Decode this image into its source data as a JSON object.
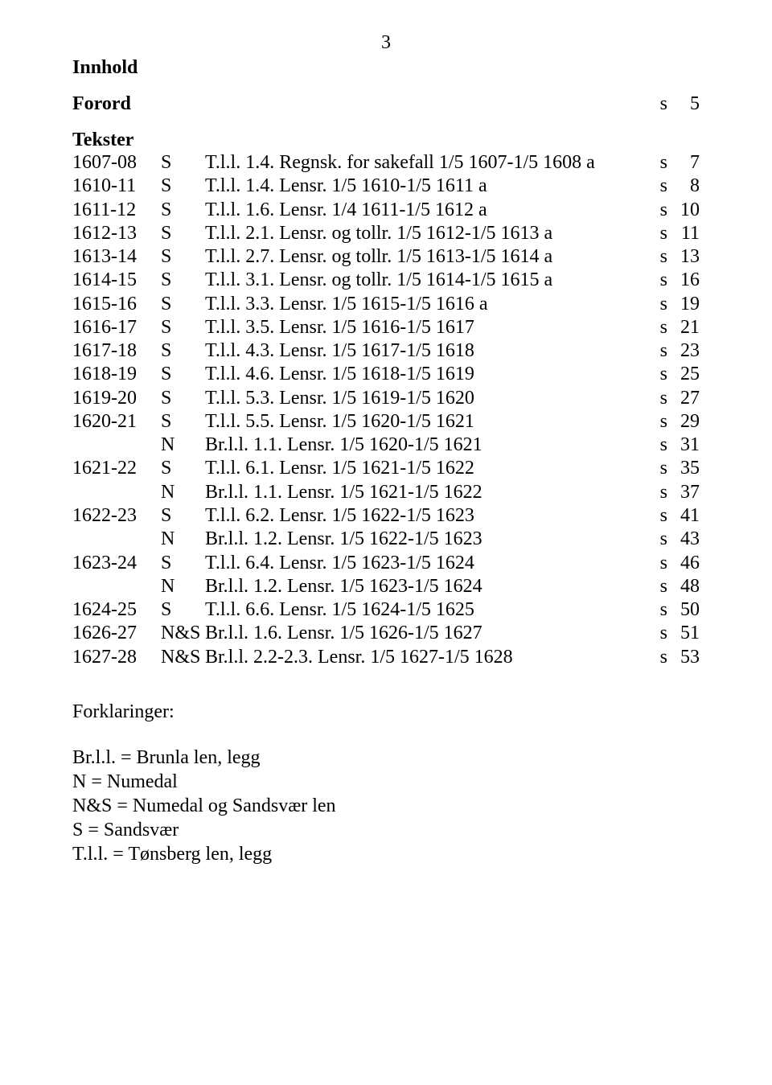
{
  "page_number": "3",
  "heading_innhold": "Innhold",
  "forord": {
    "label": "Forord",
    "s": "s",
    "page": "5"
  },
  "heading_tekster": "Tekster",
  "rows": [
    {
      "year": "1607-08",
      "code": "S",
      "desc": "T.l.l. 1.4. Regnsk. for sakefall 1/5 1607-1/5 1608 a",
      "s": "s",
      "page": "7"
    },
    {
      "year": "1610-11",
      "code": "S",
      "desc": "T.l.l. 1.4. Lensr. 1/5 1610-1/5 1611 a",
      "s": "s",
      "page": "8"
    },
    {
      "year": "1611-12",
      "code": "S",
      "desc": "T.l.l. 1.6. Lensr. 1/4 1611-1/5 1612 a",
      "s": "s",
      "page": "10"
    },
    {
      "year": "1612-13",
      "code": "S",
      "desc": "T.l.l. 2.1. Lensr. og tollr. 1/5 1612-1/5 1613 a",
      "s": "s",
      "page": "11"
    },
    {
      "year": "1613-14",
      "code": "S",
      "desc": "T.l.l. 2.7. Lensr. og tollr. 1/5 1613-1/5 1614 a",
      "s": "s",
      "page": "13"
    },
    {
      "year": "1614-15",
      "code": "S",
      "desc": "T.l.l. 3.1. Lensr. og tollr. 1/5 1614-1/5 1615 a",
      "s": "s",
      "page": "16"
    },
    {
      "year": "1615-16",
      "code": "S",
      "desc": "T.l.l. 3.3. Lensr. 1/5 1615-1/5 1616 a",
      "s": "s",
      "page": "19"
    },
    {
      "year": "1616-17",
      "code": "S",
      "desc": "T.l.l. 3.5. Lensr. 1/5 1616-1/5 1617",
      "s": "s",
      "page": "21"
    },
    {
      "year": "1617-18",
      "code": "S",
      "desc": "T.l.l. 4.3. Lensr. 1/5 1617-1/5 1618",
      "s": "s",
      "page": "23"
    },
    {
      "year": "1618-19",
      "code": "S",
      "desc": "T.l.l. 4.6. Lensr. 1/5 1618-1/5 1619",
      "s": "s",
      "page": "25"
    },
    {
      "year": "1619-20",
      "code": "S",
      "desc": "T.l.l. 5.3. Lensr. 1/5 1619-1/5 1620",
      "s": "s",
      "page": "27"
    },
    {
      "year": "1620-21",
      "code": "S",
      "desc": "T.l.l. 5.5. Lensr. 1/5 1620-1/5 1621",
      "s": "s",
      "page": "29"
    },
    {
      "year": "",
      "code": "N",
      "desc": "Br.l.l. 1.1. Lensr. 1/5 1620-1/5 1621",
      "s": "s",
      "page": "31"
    },
    {
      "year": "1621-22",
      "code": "S",
      "desc": "T.l.l. 6.1. Lensr. 1/5 1621-1/5 1622",
      "s": "s",
      "page": "35"
    },
    {
      "year": "",
      "code": "N",
      "desc": "Br.l.l. 1.1. Lensr. 1/5 1621-1/5 1622",
      "s": "s",
      "page": "37"
    },
    {
      "year": "1622-23",
      "code": "S",
      "desc": "T.l.l. 6.2. Lensr. 1/5 1622-1/5 1623",
      "s": "s",
      "page": "41"
    },
    {
      "year": "",
      "code": "N",
      "desc": "Br.l.l. 1.2. Lensr. 1/5 1622-1/5 1623",
      "s": "s",
      "page": "43"
    },
    {
      "year": "1623-24",
      "code": "S",
      "desc": "T.l.l. 6.4. Lensr. 1/5 1623-1/5 1624",
      "s": "s",
      "page": "46"
    },
    {
      "year": "",
      "code": "N",
      "desc": "Br.l.l. 1.2. Lensr. 1/5 1623-1/5 1624",
      "s": "s",
      "page": "48"
    },
    {
      "year": "1624-25",
      "code": "S",
      "desc": "T.l.l. 6.6. Lensr. 1/5 1624-1/5 1625",
      "s": "s",
      "page": "50"
    },
    {
      "year": "1626-27",
      "code": "N&S",
      "desc": "Br.l.l. 1.6. Lensr. 1/5 1626-1/5 1627",
      "s": "s",
      "page": "51"
    },
    {
      "year": "1627-28",
      "code": "N&S",
      "desc": "Br.l.l. 2.2-2.3. Lensr. 1/5 1627-1/5 1628",
      "s": "s",
      "page": "53"
    }
  ],
  "forklaringer_heading": "Forklaringer:",
  "forklaringer": [
    "Br.l.l. = Brunla len, legg",
    " N = Numedal",
    "N&S = Numedal og Sandsvær len",
    "S = Sandsvær",
    "T.l.l. = Tønsberg len, legg"
  ]
}
